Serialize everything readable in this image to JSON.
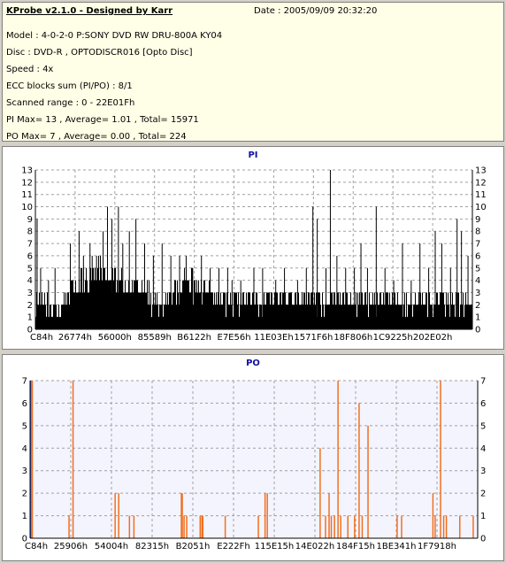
{
  "header": {
    "title": "KProbe v2.1.0 - Designed by Karr",
    "date": "Date : 2005/09/09 20:32:20",
    "lines": [
      "Model : 4-0-2-0 P:SONY    DVD RW DRU-800A  KY04",
      "Disc : DVD-R , OPTODISCR016 [Opto Disc]",
      "Speed : 4x",
      "ECC blocks sum (PI/PO) : 8/1",
      "Scanned range : 0 - 22E01Fh",
      "PI Max= 13 , Average= 1.01 , Total= 15971",
      "PO Max= 7 , Average= 0.00 , Total= 224"
    ]
  },
  "colors": {
    "pi_bar": "#000000",
    "po_bar": "#f07020",
    "po_left_bar": "#3050c0",
    "grid": "#a0a0a0",
    "title": "#1010a0"
  },
  "chart_data": [
    {
      "type": "bar",
      "title": "PI",
      "ylim": [
        0,
        13
      ],
      "yticks": [
        0,
        1,
        2,
        3,
        4,
        5,
        6,
        7,
        8,
        9,
        10,
        11,
        12,
        13
      ],
      "xticks": [
        "C84h",
        "26774h",
        "56000h",
        "85589h",
        "B6122h",
        "E7E56h",
        "11E03Eh",
        "1571F6h",
        "18F806h",
        "1C9225h",
        "202E02h"
      ],
      "grid": true,
      "profile": [
        [
          0,
          3,
          2
        ],
        [
          0.02,
          3,
          1
        ],
        [
          0.04,
          2,
          1
        ],
        [
          0.06,
          3,
          2
        ],
        [
          0.08,
          4,
          3
        ],
        [
          0.1,
          5,
          3
        ],
        [
          0.12,
          5,
          3
        ],
        [
          0.14,
          6,
          4
        ],
        [
          0.16,
          5,
          4
        ],
        [
          0.18,
          5,
          4
        ],
        [
          0.2,
          4,
          3
        ],
        [
          0.22,
          4,
          3
        ],
        [
          0.24,
          4,
          2
        ],
        [
          0.26,
          3,
          2
        ],
        [
          0.28,
          3,
          2
        ],
        [
          0.3,
          4,
          2
        ],
        [
          0.32,
          4,
          3
        ],
        [
          0.34,
          5,
          3
        ],
        [
          0.36,
          4,
          3
        ],
        [
          0.38,
          4,
          3
        ],
        [
          0.4,
          3,
          2
        ],
        [
          0.42,
          3,
          2
        ],
        [
          0.44,
          3,
          2
        ],
        [
          0.46,
          3,
          2
        ],
        [
          0.48,
          3,
          2
        ],
        [
          0.5,
          3,
          2
        ],
        [
          0.52,
          3,
          2
        ],
        [
          0.54,
          3,
          2
        ],
        [
          0.56,
          3,
          2
        ],
        [
          0.58,
          3,
          2
        ],
        [
          0.6,
          3,
          2
        ],
        [
          0.62,
          3,
          2
        ],
        [
          0.64,
          3,
          2
        ],
        [
          0.66,
          3,
          2
        ],
        [
          0.68,
          3,
          2
        ],
        [
          0.7,
          3,
          2
        ],
        [
          0.72,
          3,
          2
        ],
        [
          0.74,
          3,
          2
        ],
        [
          0.76,
          3,
          2
        ],
        [
          0.78,
          3,
          2
        ],
        [
          0.8,
          3,
          2
        ],
        [
          0.82,
          3,
          2
        ],
        [
          0.84,
          3,
          2
        ],
        [
          0.86,
          3,
          2
        ],
        [
          0.88,
          3,
          2
        ],
        [
          0.9,
          3,
          2
        ],
        [
          0.92,
          3,
          2
        ],
        [
          0.94,
          3,
          2
        ],
        [
          0.96,
          3,
          2
        ],
        [
          0.98,
          3,
          2
        ],
        [
          1,
          3,
          2
        ]
      ],
      "spikes": [
        [
          0.004,
          9
        ],
        [
          0.012,
          5
        ],
        [
          0.03,
          4
        ],
        [
          0.045,
          5
        ],
        [
          0.08,
          7
        ],
        [
          0.1,
          8
        ],
        [
          0.11,
          6
        ],
        [
          0.125,
          7
        ],
        [
          0.13,
          6
        ],
        [
          0.14,
          6
        ],
        [
          0.155,
          8
        ],
        [
          0.165,
          10
        ],
        [
          0.175,
          9
        ],
        [
          0.19,
          10
        ],
        [
          0.2,
          7
        ],
        [
          0.215,
          8
        ],
        [
          0.23,
          9
        ],
        [
          0.25,
          7
        ],
        [
          0.27,
          6
        ],
        [
          0.29,
          7
        ],
        [
          0.31,
          6
        ],
        [
          0.33,
          6
        ],
        [
          0.345,
          6
        ],
        [
          0.36,
          5
        ],
        [
          0.38,
          6
        ],
        [
          0.4,
          5
        ],
        [
          0.42,
          5
        ],
        [
          0.44,
          5
        ],
        [
          0.45,
          4
        ],
        [
          0.47,
          4
        ],
        [
          0.5,
          5
        ],
        [
          0.52,
          5
        ],
        [
          0.55,
          4
        ],
        [
          0.57,
          5
        ],
        [
          0.6,
          4
        ],
        [
          0.62,
          5
        ],
        [
          0.635,
          10
        ],
        [
          0.645,
          9
        ],
        [
          0.665,
          5
        ],
        [
          0.675,
          13
        ],
        [
          0.69,
          6
        ],
        [
          0.71,
          5
        ],
        [
          0.73,
          5
        ],
        [
          0.745,
          7
        ],
        [
          0.76,
          5
        ],
        [
          0.78,
          10
        ],
        [
          0.8,
          5
        ],
        [
          0.82,
          4
        ],
        [
          0.84,
          7
        ],
        [
          0.86,
          4
        ],
        [
          0.88,
          7
        ],
        [
          0.9,
          5
        ],
        [
          0.915,
          8
        ],
        [
          0.93,
          7
        ],
        [
          0.95,
          5
        ],
        [
          0.965,
          9
        ],
        [
          0.975,
          8
        ],
        [
          0.99,
          6
        ]
      ]
    },
    {
      "type": "bar",
      "title": "PO",
      "ylim": [
        0,
        7
      ],
      "yticks": [
        0,
        1,
        2,
        3,
        4,
        5,
        6,
        7
      ],
      "xticks": [
        "C84h",
        "25906h",
        "54004h",
        "82315h",
        "B2051h",
        "E222Fh",
        "115E15h",
        "14E022h",
        "184F15h",
        "1BE341h",
        "1F7918h"
      ],
      "grid": true,
      "bars": [
        [
          0.002,
          7
        ],
        [
          0.004,
          7
        ],
        [
          0.005,
          7
        ],
        [
          0.087,
          1
        ],
        [
          0.096,
          7
        ],
        [
          0.19,
          2
        ],
        [
          0.198,
          2
        ],
        [
          0.222,
          1
        ],
        [
          0.232,
          1
        ],
        [
          0.338,
          2
        ],
        [
          0.34,
          2
        ],
        [
          0.344,
          1
        ],
        [
          0.35,
          1
        ],
        [
          0.38,
          1
        ],
        [
          0.384,
          1
        ],
        [
          0.386,
          1
        ],
        [
          0.436,
          1
        ],
        [
          0.51,
          1
        ],
        [
          0.525,
          2
        ],
        [
          0.53,
          2
        ],
        [
          0.648,
          4
        ],
        [
          0.66,
          1
        ],
        [
          0.668,
          2
        ],
        [
          0.673,
          1
        ],
        [
          0.68,
          1
        ],
        [
          0.688,
          7
        ],
        [
          0.694,
          1
        ],
        [
          0.71,
          1
        ],
        [
          0.725,
          1
        ],
        [
          0.735,
          6
        ],
        [
          0.742,
          1
        ],
        [
          0.755,
          5
        ],
        [
          0.82,
          1
        ],
        [
          0.83,
          1
        ],
        [
          0.9,
          2
        ],
        [
          0.905,
          1
        ],
        [
          0.917,
          7
        ],
        [
          0.924,
          1
        ],
        [
          0.93,
          1
        ],
        [
          0.96,
          1
        ],
        [
          0.99,
          1
        ]
      ]
    }
  ]
}
